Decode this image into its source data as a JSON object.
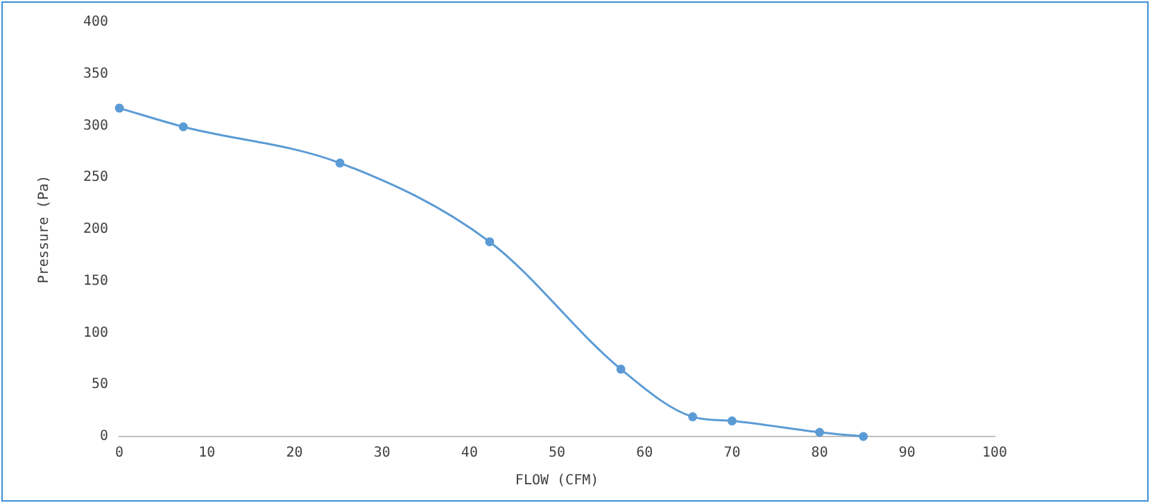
{
  "chart_data": {
    "type": "line",
    "xlabel": "FLOW (CFM)",
    "ylabel": "Pressure (Pa)",
    "x": [
      0,
      7.3,
      25.2,
      42.3,
      57.3,
      65.5,
      70,
      80,
      85
    ],
    "series": [
      {
        "color": "#5b9bd5",
        "values": [
          317,
          299,
          264,
          188,
          65,
          19,
          15,
          4,
          0
        ]
      }
    ],
    "xlim": [
      0,
      100
    ],
    "xticks": [
      0,
      10,
      20,
      30,
      40,
      50,
      60,
      70,
      80,
      90,
      100
    ],
    "ylim": [
      0,
      400
    ],
    "yticks": [
      0,
      50,
      100,
      150,
      200,
      250,
      300,
      350,
      400
    ],
    "grid": false,
    "legend": false,
    "marker": "circle",
    "line_style": "solid"
  }
}
